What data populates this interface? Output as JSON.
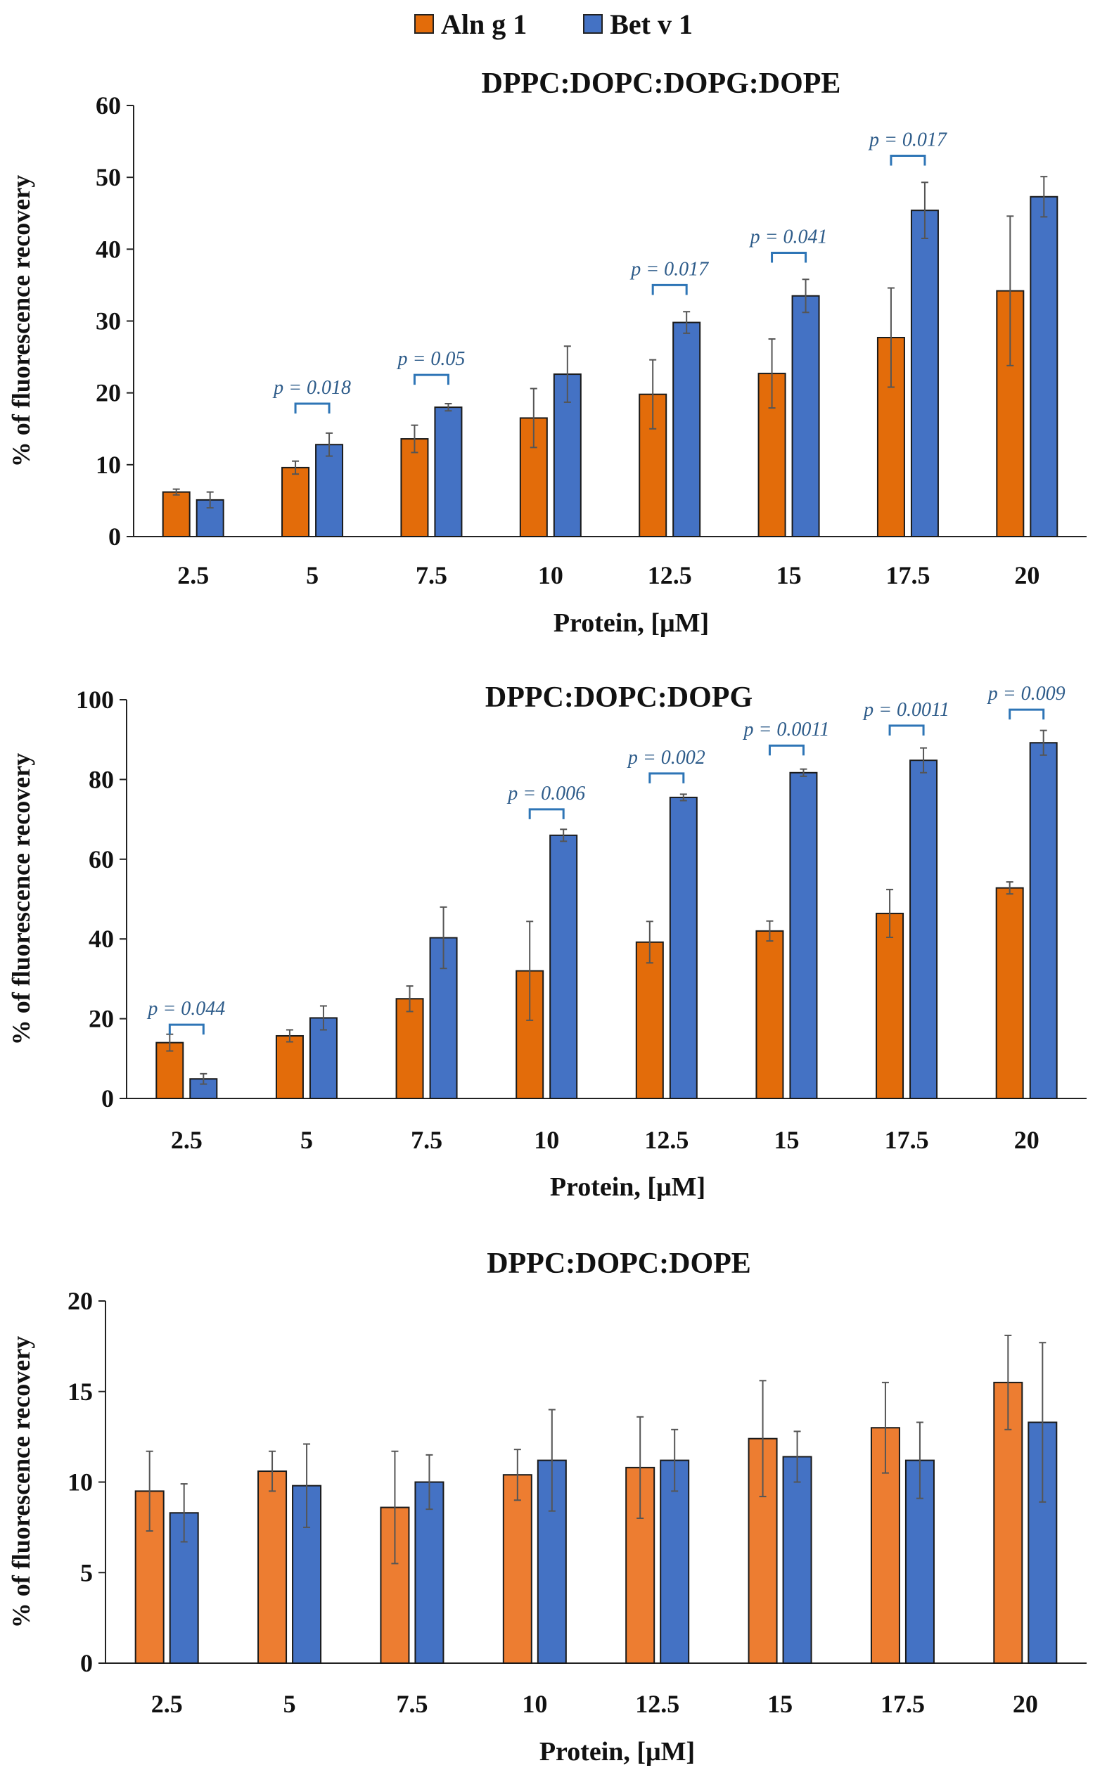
{
  "legend": {
    "items": [
      {
        "label": "Aln g 1",
        "color": "#E36C0A"
      },
      {
        "label": "Bet v 1",
        "color": "#4472C4"
      }
    ]
  },
  "chart_data": [
    {
      "type": "bar",
      "title": "DPPC:DOPC:DOPG:DOPE",
      "xlabel": "Protein, [μM]",
      "ylabel": "% of fluorescence recovery",
      "categories": [
        "2.5",
        "5",
        "7.5",
        "10",
        "12.5",
        "15",
        "17.5",
        "20"
      ],
      "ylim": [
        0,
        60
      ],
      "yticks": [
        0,
        10,
        20,
        30,
        40,
        50,
        60
      ],
      "series": [
        {
          "name": "Aln g 1",
          "color": "#E36C0A",
          "values": [
            6.2,
            9.6,
            13.6,
            16.5,
            19.8,
            22.7,
            27.7,
            34.2
          ],
          "errors": [
            0.4,
            0.9,
            1.9,
            4.1,
            4.8,
            4.8,
            6.9,
            10.4
          ]
        },
        {
          "name": "Bet v 1",
          "color": "#4472C4",
          "values": [
            5.1,
            12.8,
            18.0,
            22.6,
            29.8,
            33.5,
            45.4,
            47.3
          ],
          "errors": [
            1.1,
            1.6,
            0.5,
            3.9,
            1.5,
            2.3,
            3.9,
            2.8
          ]
        }
      ],
      "annotations": [
        {
          "category": "5",
          "text": "p = 0.018",
          "bracket_y": 18.5
        },
        {
          "category": "7.5",
          "text": "p = 0.05",
          "bracket_y": 22.5
        },
        {
          "category": "12.5",
          "text": "p = 0.017",
          "bracket_y": 35.0
        },
        {
          "category": "15",
          "text": "p = 0.041",
          "bracket_y": 39.5
        },
        {
          "category": "17.5",
          "text": "p = 0.017",
          "bracket_y": 53.0
        }
      ]
    },
    {
      "type": "bar",
      "title": "DPPC:DOPC:DOPG",
      "xlabel": "Protein, [μM]",
      "ylabel": "% of fluorescence recovery",
      "categories": [
        "2.5",
        "5",
        "7.5",
        "10",
        "12.5",
        "15",
        "17.5",
        "20"
      ],
      "ylim": [
        0,
        100
      ],
      "yticks": [
        0,
        20,
        40,
        60,
        80,
        100
      ],
      "series": [
        {
          "name": "Aln g 1",
          "color": "#E36C0A",
          "values": [
            14.0,
            15.7,
            25.0,
            32.0,
            39.2,
            42.0,
            46.4,
            52.8
          ],
          "errors": [
            2.1,
            1.5,
            3.2,
            12.4,
            5.2,
            2.5,
            6.0,
            1.5
          ]
        },
        {
          "name": "Bet v 1",
          "color": "#4472C4",
          "values": [
            4.9,
            20.2,
            40.3,
            66.0,
            75.5,
            81.7,
            84.8,
            89.2
          ],
          "errors": [
            1.3,
            3.0,
            7.7,
            1.5,
            0.8,
            0.9,
            3.1,
            3.1
          ]
        }
      ],
      "annotations": [
        {
          "category": "2.5",
          "text": "p = 0.044",
          "bracket_y": 18.5
        },
        {
          "category": "10",
          "text": "p = 0.006",
          "bracket_y": 72.5
        },
        {
          "category": "12.5",
          "text": "p = 0.002",
          "bracket_y": 81.5
        },
        {
          "category": "15",
          "text": "p = 0.0011",
          "bracket_y": 88.5
        },
        {
          "category": "17.5",
          "text": "p = 0.0011",
          "bracket_y": 93.5
        },
        {
          "category": "20",
          "text": "p = 0.009",
          "bracket_y": 97.5
        }
      ]
    },
    {
      "type": "bar",
      "title": "DPPC:DOPC:DOPE",
      "xlabel": "Protein, [μM]",
      "ylabel": "% of fluorescence recovery",
      "categories": [
        "2.5",
        "5",
        "7.5",
        "10",
        "12.5",
        "15",
        "17.5",
        "20"
      ],
      "ylim": [
        0,
        20
      ],
      "yticks": [
        0,
        5,
        10,
        15,
        20
      ],
      "series": [
        {
          "name": "Aln g 1",
          "color": "#ED7D31",
          "values": [
            9.5,
            10.6,
            8.6,
            10.4,
            10.8,
            12.4,
            13.0,
            15.5
          ],
          "errors": [
            2.2,
            1.1,
            3.1,
            1.4,
            2.8,
            3.2,
            2.5,
            2.6
          ]
        },
        {
          "name": "Bet v 1",
          "color": "#4472C4",
          "values": [
            8.3,
            9.8,
            10.0,
            11.2,
            11.2,
            11.4,
            11.2,
            13.3
          ],
          "errors": [
            1.6,
            2.3,
            1.5,
            2.8,
            1.7,
            1.4,
            2.1,
            4.4
          ]
        }
      ],
      "annotations": []
    }
  ]
}
